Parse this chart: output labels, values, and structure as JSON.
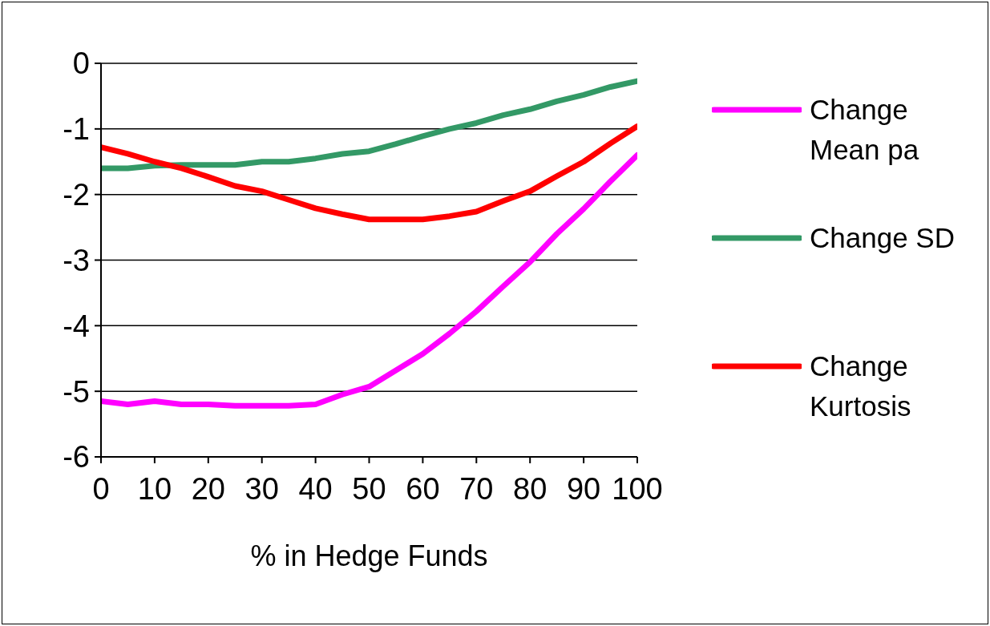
{
  "chart_data": {
    "type": "line",
    "xlabel": "% in Hedge Funds",
    "x": [
      0,
      5,
      10,
      15,
      20,
      25,
      30,
      35,
      40,
      45,
      50,
      55,
      60,
      65,
      70,
      75,
      80,
      85,
      90,
      95,
      100
    ],
    "series": [
      {
        "name": "Change Mean pa",
        "color": "#ff00ff",
        "values": [
          -5.15,
          -5.2,
          -5.15,
          -5.2,
          -5.2,
          -5.22,
          -5.22,
          -5.22,
          -5.2,
          -5.05,
          -4.93,
          -4.68,
          -4.43,
          -4.12,
          -3.78,
          -3.4,
          -3.03,
          -2.6,
          -2.22,
          -1.8,
          -1.4
        ]
      },
      {
        "name": "Change SD",
        "color": "#339966",
        "values": [
          -1.6,
          -1.6,
          -1.56,
          -1.55,
          -1.55,
          -1.55,
          -1.5,
          -1.5,
          -1.45,
          -1.38,
          -1.34,
          -1.23,
          -1.11,
          -1.0,
          -0.91,
          -0.79,
          -0.7,
          -0.58,
          -0.48,
          -0.36,
          -0.27
        ]
      },
      {
        "name": "Change Kurtosis",
        "color": "#ff0000",
        "values": [
          -1.28,
          -1.38,
          -1.5,
          -1.6,
          -1.73,
          -1.87,
          -1.95,
          -2.08,
          -2.21,
          -2.3,
          -2.38,
          -2.38,
          -2.38,
          -2.33,
          -2.26,
          -2.1,
          -1.95,
          -1.72,
          -1.5,
          -1.22,
          -0.96
        ]
      }
    ],
    "xlim": [
      0,
      100
    ],
    "xticks": [
      0,
      10,
      20,
      30,
      40,
      50,
      60,
      70,
      80,
      90,
      100
    ],
    "ylim": [
      -6,
      0
    ],
    "yticks": [
      -6,
      -5,
      -4,
      -3,
      -2,
      -1,
      0
    ],
    "grid": "y",
    "legend": "right",
    "marker": "none",
    "line_style": "solid"
  }
}
